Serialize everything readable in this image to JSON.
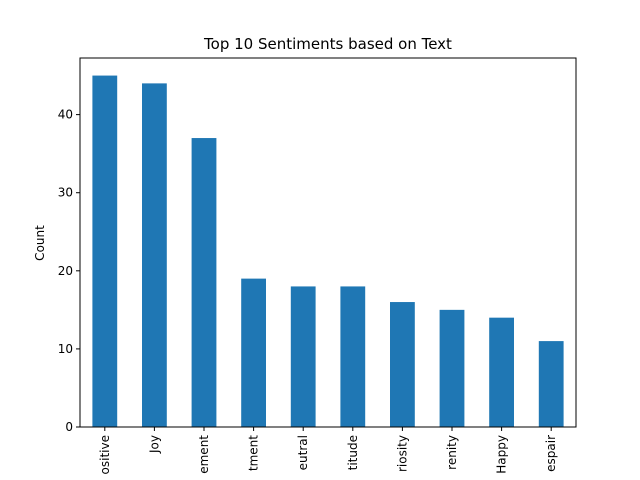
{
  "chart_data": {
    "type": "bar",
    "title": "Top 10 Sentiments based on Text",
    "xlabel": "",
    "ylabel": "Count",
    "categories": [
      "ositive",
      "Joy",
      "ement",
      "tment",
      "eutral",
      "titude",
      "riosity",
      "renity",
      "Happy",
      "espair"
    ],
    "values": [
      45,
      44,
      37,
      19,
      18,
      18,
      16,
      15,
      14,
      11
    ],
    "ylim": [
      0,
      47.25
    ],
    "yticks": [
      0,
      10,
      20,
      30,
      40
    ],
    "grid": false,
    "legend": "none",
    "bar_color": "#1f77b4"
  }
}
